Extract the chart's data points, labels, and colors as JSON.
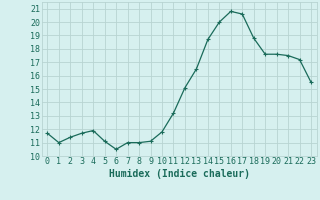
{
  "x": [
    0,
    1,
    2,
    3,
    4,
    5,
    6,
    7,
    8,
    9,
    10,
    11,
    12,
    13,
    14,
    15,
    16,
    17,
    18,
    19,
    20,
    21,
    22,
    23
  ],
  "y": [
    11.7,
    11.0,
    11.4,
    11.7,
    11.9,
    11.1,
    10.5,
    11.0,
    11.0,
    11.1,
    11.8,
    13.2,
    15.1,
    16.5,
    18.7,
    20.0,
    20.8,
    20.6,
    18.8,
    17.6,
    17.6,
    17.5,
    17.2,
    15.5
  ],
  "line_color": "#1a6b5a",
  "marker": "+",
  "marker_size": 3,
  "marker_linewidth": 0.8,
  "line_width": 0.9,
  "bg_color": "#d6f0ef",
  "grid_color": "#b8d4d2",
  "xlabel": "Humidex (Indice chaleur)",
  "ylabel_ticks": [
    10,
    11,
    12,
    13,
    14,
    15,
    16,
    17,
    18,
    19,
    20,
    21
  ],
  "xlim": [
    -0.5,
    23.5
  ],
  "ylim": [
    10,
    21.5
  ],
  "xlabel_fontsize": 7,
  "tick_fontsize": 6,
  "tick_color": "#1a6b5a"
}
